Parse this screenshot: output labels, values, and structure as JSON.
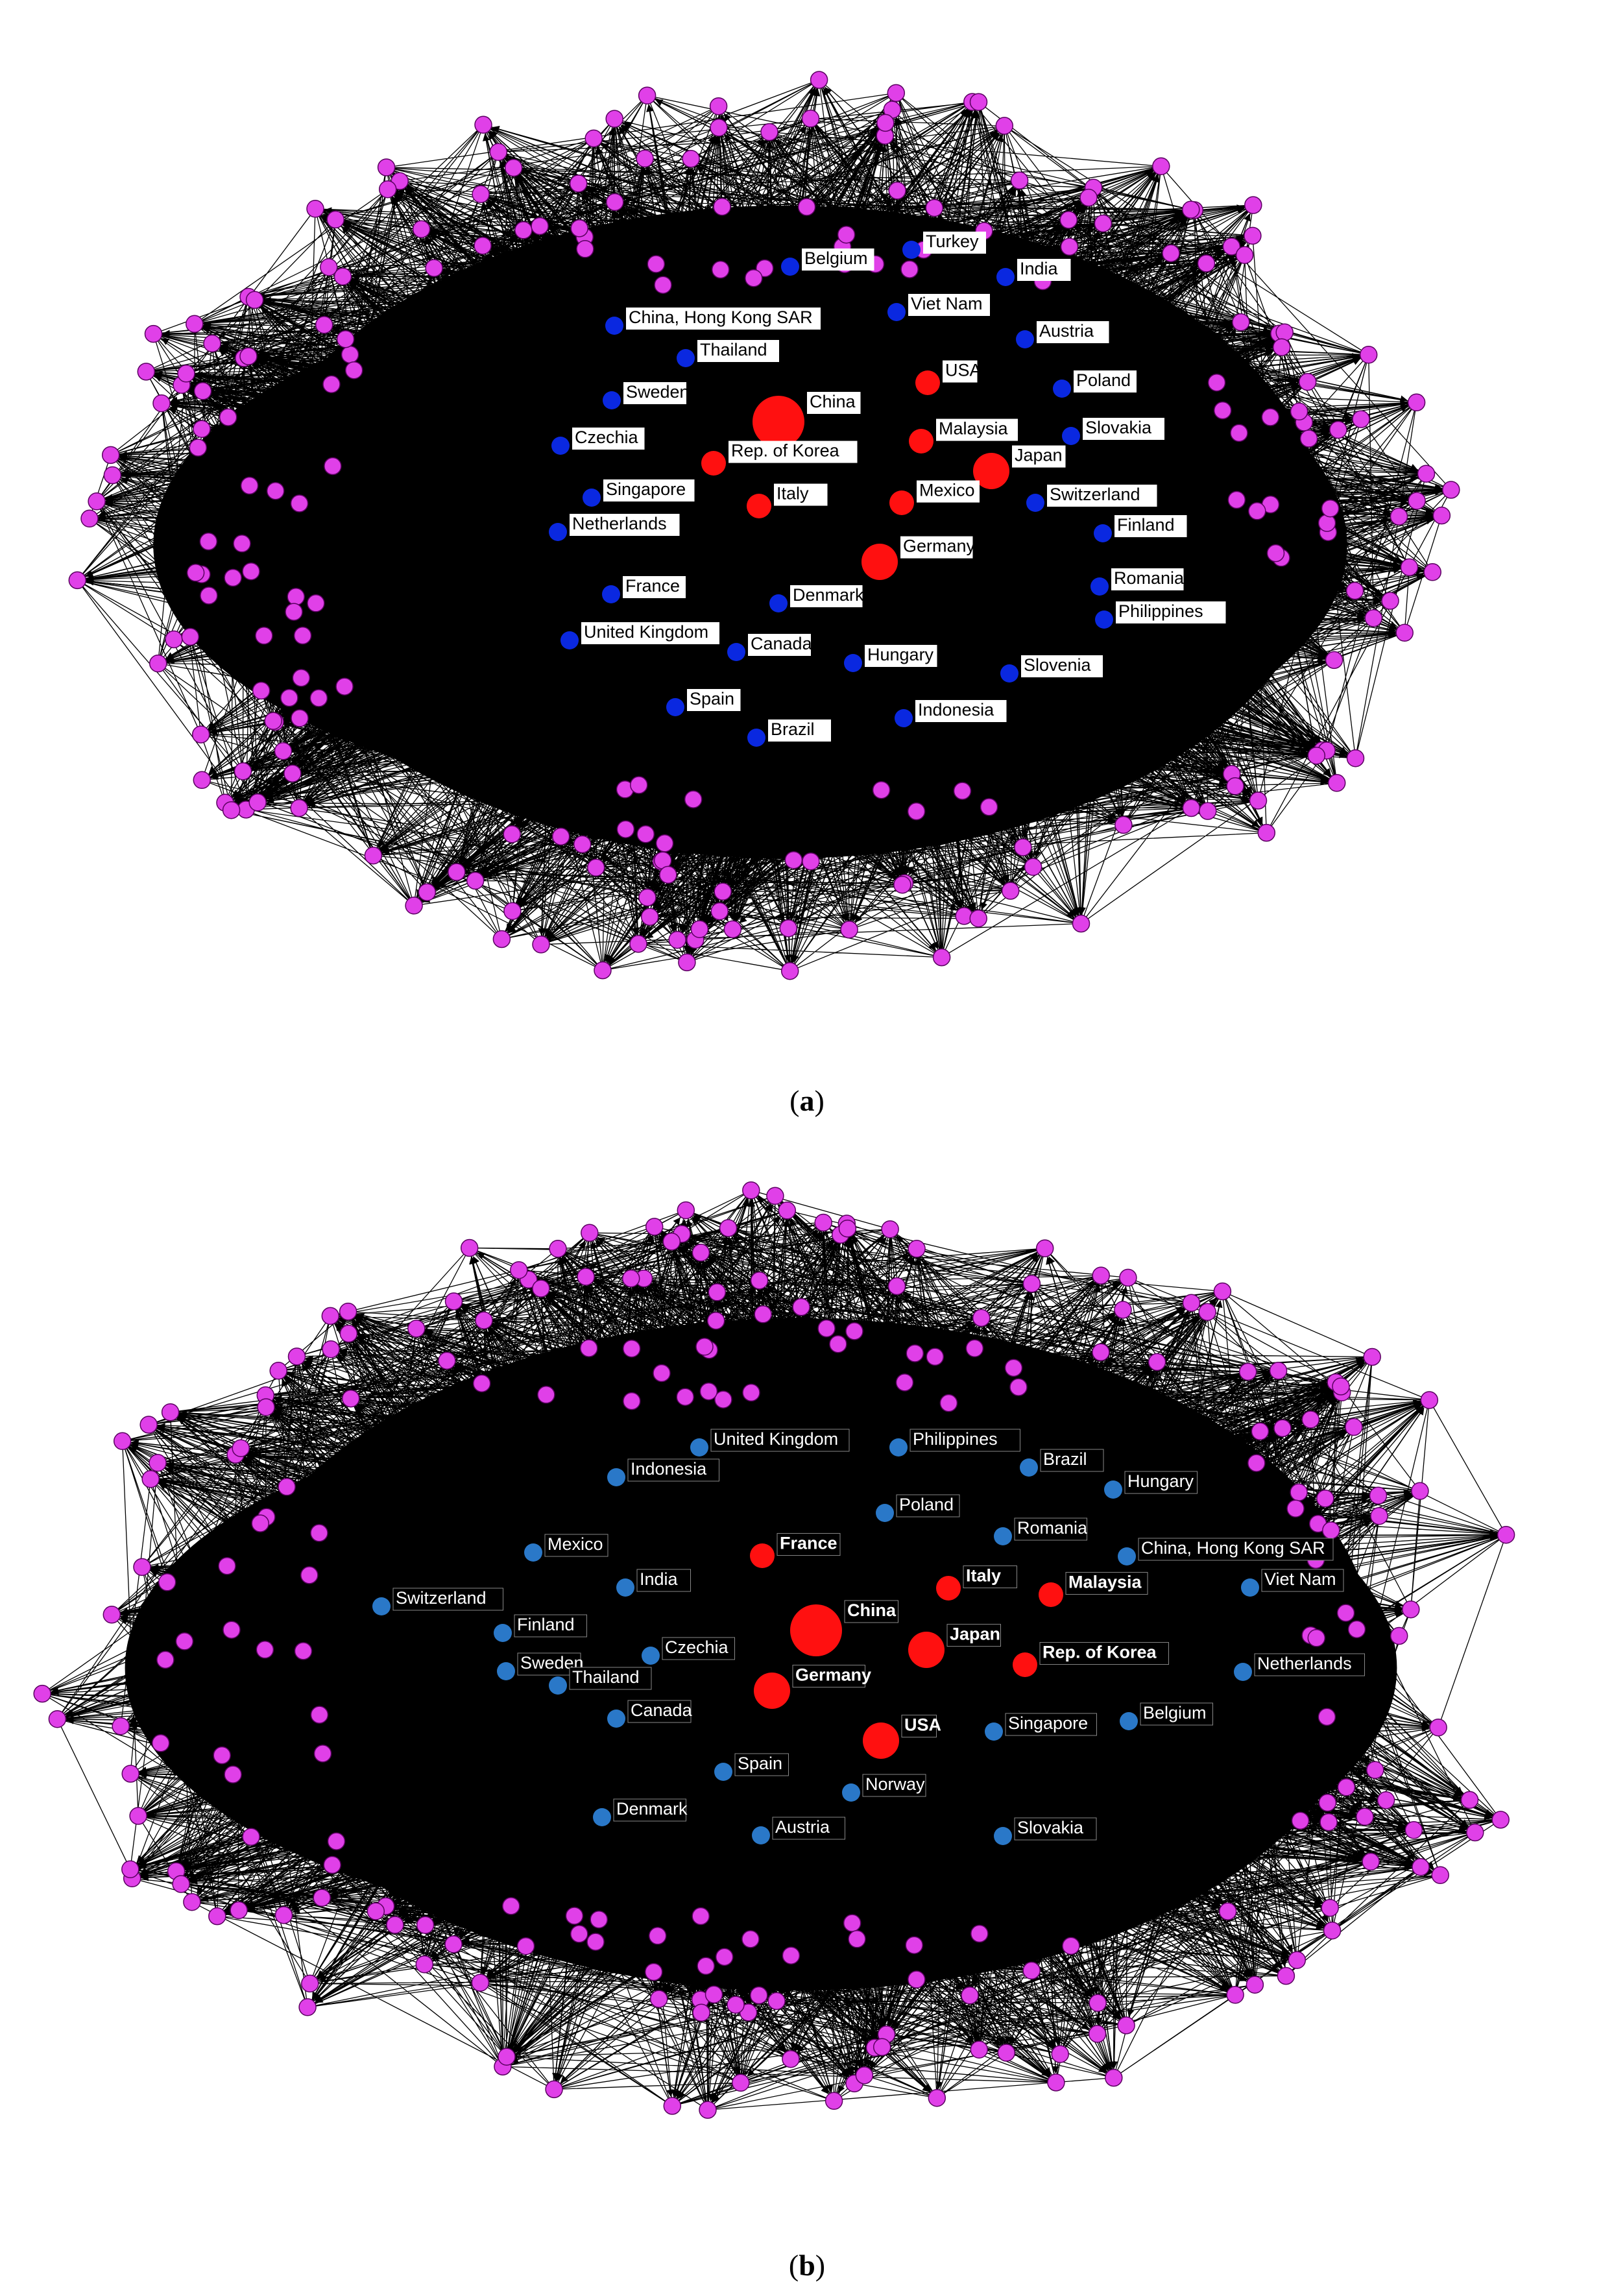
{
  "colors": {
    "background": "#ffffff",
    "edge": "#000000",
    "peripheral_node": "#e040e8",
    "hub_node": "#ff1010",
    "mid_node_a": "#0a28e0",
    "mid_node_b": "#2a78c8",
    "label_bg_a": "#ffffff",
    "label_text_a": "#000000",
    "label_text_b": "#ffffff"
  },
  "panels": [
    {
      "id": "a",
      "caption": {
        "open": "(",
        "letter": "a",
        "close": ")"
      },
      "hub_nodes": [
        {
          "label": "China",
          "size": "xl"
        },
        {
          "label": "USA",
          "size": "m"
        },
        {
          "label": "Malaysia",
          "size": "m"
        },
        {
          "label": "Japan",
          "size": "l"
        },
        {
          "label": "Rep. of Korea",
          "size": "m"
        },
        {
          "label": "Italy",
          "size": "m"
        },
        {
          "label": "Mexico",
          "size": "m"
        },
        {
          "label": "Germany",
          "size": "l"
        }
      ],
      "mid_nodes": [
        "Turkey",
        "Belgium",
        "India",
        "China, Hong Kong SAR",
        "Viet Nam",
        "Austria",
        "Thailand",
        "Poland",
        "Sweden",
        "Slovakia",
        "Czechia",
        "Singapore",
        "Switzerland",
        "Netherlands",
        "Finland",
        "Romania",
        "France",
        "Denmark",
        "Philippines",
        "United Kingdom",
        "Canada",
        "Hungary",
        "Slovenia",
        "Spain",
        "Indonesia",
        "Brazil"
      ]
    },
    {
      "id": "b",
      "caption": {
        "open": "(",
        "letter": "b",
        "close": ")"
      },
      "hub_nodes": [
        {
          "label": "France",
          "size": "m"
        },
        {
          "label": "Italy",
          "size": "m"
        },
        {
          "label": "Malaysia",
          "size": "m"
        },
        {
          "label": "China",
          "size": "xl"
        },
        {
          "label": "Japan",
          "size": "l"
        },
        {
          "label": "Rep. of Korea",
          "size": "m"
        },
        {
          "label": "Germany",
          "size": "l"
        },
        {
          "label": "USA",
          "size": "l"
        }
      ],
      "mid_nodes": [
        "United Kingdom",
        "Philippines",
        "Brazil",
        "Indonesia",
        "Hungary",
        "Poland",
        "Romania",
        "Mexico",
        "China, Hong Kong SAR",
        "India",
        "Viet Nam",
        "Switzerland",
        "Finland",
        "Czechia",
        "Sweden",
        "Thailand",
        "Netherlands",
        "Canada",
        "Belgium",
        "Singapore",
        "Spain",
        "Norway",
        "Denmark",
        "Austria",
        "Slovakia"
      ]
    }
  ]
}
